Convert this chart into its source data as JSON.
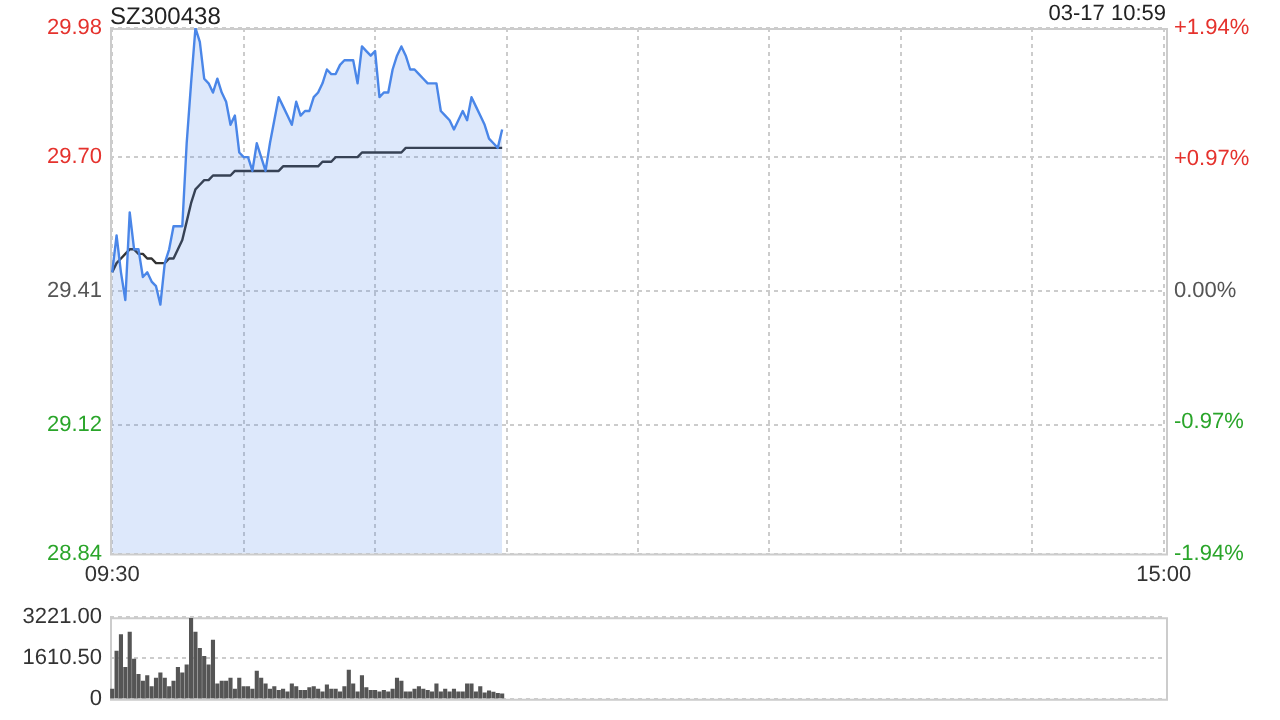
{
  "chart_data": [
    {
      "type": "area",
      "title": "SZ300438",
      "annotations": [
        "03-17 10:59"
      ],
      "categories": [
        "09:30",
        null,
        null,
        null,
        null,
        null,
        null,
        null,
        null,
        null,
        null,
        null,
        null,
        null,
        null,
        null,
        null,
        null,
        null,
        null,
        null,
        null,
        null,
        null,
        null,
        null,
        null,
        null,
        null,
        null,
        null,
        null,
        null,
        null,
        null,
        null,
        null,
        null,
        null,
        null,
        null,
        null,
        null,
        null,
        null,
        null,
        null,
        null,
        null,
        null,
        null,
        null,
        null,
        null,
        null,
        null,
        null,
        null,
        null,
        null,
        null,
        null,
        null,
        null,
        null,
        null,
        null,
        null,
        null,
        null,
        null,
        null,
        null,
        null,
        null,
        null,
        null,
        null,
        null,
        null,
        null,
        null,
        null,
        null,
        null,
        null,
        null,
        null,
        null,
        null,
        null,
        null,
        null,
        null,
        null,
        null,
        null,
        null,
        null,
        null,
        null,
        null,
        null,
        null,
        null,
        null,
        null,
        null,
        null,
        null,
        null,
        null,
        null,
        null,
        null,
        null,
        null,
        null,
        null,
        null,
        null,
        null,
        null,
        null,
        null,
        null,
        null,
        null,
        null,
        null,
        null,
        null,
        null,
        null,
        null,
        null,
        null,
        null,
        null,
        null,
        null,
        null,
        null,
        null,
        null,
        null,
        null,
        null,
        null,
        null,
        null,
        null,
        null,
        null,
        null,
        null,
        null,
        null,
        null,
        null,
        null,
        null,
        null,
        null,
        null,
        null,
        null,
        null,
        null,
        null,
        null,
        null,
        null,
        null,
        null,
        null,
        null,
        null,
        null,
        null,
        null,
        null,
        null,
        null,
        null,
        null,
        null,
        null,
        null,
        null,
        null,
        null,
        null,
        null,
        null,
        null,
        null,
        null,
        null,
        null,
        null,
        null,
        null,
        null,
        null,
        null,
        null,
        null,
        null,
        null,
        null,
        null,
        null,
        null,
        null,
        null,
        null,
        null,
        null,
        null,
        null,
        null,
        null,
        null,
        null,
        null,
        null,
        null,
        null,
        null,
        null,
        null,
        null,
        null,
        null,
        null,
        null,
        null,
        null,
        null,
        "15:00"
      ],
      "ylim": [
        28.84,
        29.98
      ],
      "yticks": [
        28.84,
        29.12,
        29.41,
        {
          "value": 29.7,
          "label": "29.70"
        },
        29.98
      ],
      "y2lim": [
        -1.94,
        1.94
      ],
      "y2ticks": [
        {
          "value": -1.94,
          "label": "-1.94%"
        },
        {
          "value": -0.97,
          "label": "-0.97%"
        },
        {
          "value": 0,
          "label": "0.00%"
        },
        {
          "value": 0.97,
          "label": "+0.97%"
        },
        {
          "value": 1.94,
          "label": "+1.94%"
        }
      ],
      "grid": true,
      "marker": "none",
      "series": [
        {
          "color": "#4a86e8",
          "values": [
            29.45,
            29.53,
            29.45,
            29.39,
            29.58,
            29.5,
            29.5,
            29.44,
            29.45,
            29.43,
            29.42,
            29.38,
            29.47,
            29.5,
            29.55,
            29.55,
            29.55,
            29.73,
            29.86,
            29.98,
            29.95,
            29.87,
            29.86,
            29.84,
            29.87,
            29.84,
            29.82,
            29.77,
            29.79,
            29.71,
            29.7,
            29.7,
            29.67,
            29.73,
            29.7,
            29.67,
            29.73,
            29.78,
            29.83,
            29.81,
            29.79,
            29.77,
            29.82,
            29.79,
            29.8,
            29.8,
            29.83,
            29.84,
            29.86,
            29.89,
            29.88,
            29.88,
            29.9,
            29.91,
            29.91,
            29.91,
            29.86,
            29.94,
            29.93,
            29.92,
            29.93,
            29.83,
            29.84,
            29.84,
            29.89,
            29.92,
            29.94,
            29.92,
            29.89,
            29.89,
            29.88,
            29.87,
            29.86,
            29.86,
            29.86,
            29.8,
            29.79,
            29.78,
            29.76,
            29.78,
            29.8,
            29.78,
            29.83,
            29.81,
            29.79,
            29.77,
            29.74,
            29.73,
            29.72,
            29.76,
            null,
            null,
            null,
            null,
            null,
            null,
            null,
            null,
            null,
            null,
            null,
            null,
            null,
            null,
            null,
            null,
            null,
            null,
            null,
            null,
            null,
            null,
            null,
            null,
            null,
            null,
            null,
            null,
            null,
            null,
            null,
            null,
            null,
            null,
            null,
            null,
            null,
            null,
            null,
            null,
            null,
            null,
            null,
            null,
            null,
            null,
            null,
            null,
            null,
            null,
            null,
            null,
            null,
            null,
            null,
            null,
            null,
            null,
            null,
            null,
            null,
            null,
            null,
            null,
            null,
            null,
            null,
            null,
            null,
            null,
            null,
            null,
            null,
            null,
            null,
            null,
            null,
            null,
            null,
            null,
            null,
            null,
            null,
            null,
            null,
            null,
            null,
            null,
            null,
            null,
            null,
            null,
            null,
            null,
            null,
            null,
            null,
            null,
            null,
            null,
            null,
            null,
            null,
            null,
            null,
            null,
            null,
            null,
            null,
            null,
            null,
            null,
            null,
            null,
            null,
            null,
            null,
            null,
            null,
            null,
            null,
            null,
            null,
            null,
            null,
            null,
            null,
            null,
            null,
            null,
            null,
            null,
            null,
            null,
            null,
            null,
            null,
            null,
            null,
            null,
            null,
            null,
            null,
            null,
            null,
            null,
            null,
            null,
            null,
            null,
            null
          ]
        },
        {
          "type": "line",
          "color": "#333333",
          "values": [
            29.45,
            29.47,
            29.48,
            29.49,
            29.5,
            29.5,
            29.49,
            29.49,
            29.48,
            29.48,
            29.47,
            29.47,
            29.47,
            29.48,
            29.48,
            29.5,
            29.52,
            29.56,
            29.6,
            29.63,
            29.64,
            29.65,
            29.65,
            29.66,
            29.66,
            29.66,
            29.66,
            29.66,
            29.67,
            29.67,
            29.67,
            29.67,
            29.67,
            29.67,
            29.67,
            29.67,
            29.67,
            29.67,
            29.67,
            29.68,
            29.68,
            29.68,
            29.68,
            29.68,
            29.68,
            29.68,
            29.68,
            29.68,
            29.69,
            29.69,
            29.69,
            29.7,
            29.7,
            29.7,
            29.7,
            29.7,
            29.7,
            29.71,
            29.71,
            29.71,
            29.71,
            29.71,
            29.71,
            29.71,
            29.71,
            29.71,
            29.71,
            29.72,
            29.72,
            29.72,
            29.72,
            29.72,
            29.72,
            29.72,
            29.72,
            29.72,
            29.72,
            29.72,
            29.72,
            29.72,
            29.72,
            29.72,
            29.72,
            29.72,
            29.72,
            29.72,
            29.72,
            29.72,
            29.72,
            29.72,
            null,
            null,
            null,
            null,
            null,
            null,
            null,
            null,
            null,
            null,
            null,
            null,
            null,
            null,
            null,
            null,
            null,
            null,
            null,
            null,
            null,
            null,
            null,
            null,
            null,
            null,
            null,
            null,
            null,
            null,
            null,
            null,
            null,
            null,
            null,
            null,
            null,
            null,
            null,
            null,
            null,
            null,
            null,
            null,
            null,
            null,
            null,
            null,
            null,
            null,
            null,
            null,
            null,
            null,
            null,
            null,
            null,
            null,
            null,
            null,
            null,
            null,
            null,
            null,
            null,
            null,
            null,
            null,
            null,
            null,
            null,
            null,
            null,
            null,
            null,
            null,
            null,
            null,
            null,
            null,
            null,
            null,
            null,
            null,
            null,
            null,
            null,
            null,
            null,
            null,
            null,
            null,
            null,
            null,
            null,
            null,
            null,
            null,
            null,
            null,
            null,
            null,
            null,
            null,
            null,
            null,
            null,
            null,
            null,
            null,
            null,
            null,
            null,
            null,
            null,
            null,
            null,
            null,
            null,
            null,
            null,
            null,
            null,
            null,
            null,
            null,
            null,
            null,
            null,
            null,
            null,
            null,
            null,
            null,
            null,
            null,
            null,
            null,
            null,
            null,
            null,
            null,
            null,
            null,
            null,
            null,
            null,
            null,
            null,
            null,
            null
          ]
        }
      ]
    },
    {
      "type": "bar",
      "color": "#555555",
      "ylim": [
        0,
        3221
      ],
      "yticks": [
        0,
        {
          "value": 1610.5,
          "label": "1610.50"
        },
        {
          "value": 3221,
          "label": "3221.00"
        }
      ],
      "grid": "y",
      "tick_labels": "y",
      "categories": [
        null,
        null,
        null,
        null,
        null,
        null,
        null,
        null,
        null,
        null,
        null,
        null,
        null,
        null,
        null,
        null,
        null,
        null,
        null,
        null,
        null,
        null,
        null,
        null,
        null,
        null,
        null,
        null,
        null,
        null,
        null,
        null,
        null,
        null,
        null,
        null,
        null,
        null,
        null,
        null,
        null,
        null,
        null,
        null,
        null,
        null,
        null,
        null,
        null,
        null,
        null,
        null,
        null,
        null,
        null,
        null,
        null,
        null,
        null,
        null,
        null,
        null,
        null,
        null,
        null,
        null,
        null,
        null,
        null,
        null,
        null,
        null,
        null,
        null,
        null,
        null,
        null,
        null,
        null,
        null,
        null,
        null,
        null,
        null,
        null,
        null,
        null,
        null,
        null,
        null,
        null,
        null,
        null,
        null,
        null,
        null,
        null,
        null,
        null,
        null,
        null,
        null,
        null,
        null,
        null,
        null,
        null,
        null,
        null,
        null,
        null,
        null,
        null,
        null,
        null,
        null,
        null,
        null,
        null,
        null,
        null,
        null,
        null,
        null,
        null,
        null,
        null,
        null,
        null,
        null,
        null,
        null,
        null,
        null,
        null,
        null,
        null,
        null,
        null,
        null,
        null,
        null,
        null,
        null,
        null,
        null,
        null,
        null,
        null,
        null,
        null,
        null,
        null,
        null,
        null,
        null,
        null,
        null,
        null,
        null,
        null,
        null,
        null,
        null,
        null,
        null,
        null,
        null,
        null,
        null,
        null,
        null,
        null,
        null,
        null,
        null,
        null,
        null,
        null,
        null,
        null,
        null,
        null,
        null,
        null,
        null,
        null,
        null,
        null,
        null,
        null,
        null,
        null,
        null,
        null,
        null,
        null,
        null,
        null,
        null,
        null,
        null,
        null,
        null,
        null,
        null,
        null,
        null,
        null,
        null,
        null,
        null,
        null,
        null,
        null,
        null,
        null,
        null,
        null,
        null,
        null,
        null,
        null,
        null,
        null,
        null,
        null,
        null,
        null,
        null,
        null,
        null,
        null,
        null,
        null,
        null,
        null,
        null,
        null,
        null,
        null
      ],
      "values": [
        370,
        1870,
        2520,
        1230,
        2620,
        1550,
        950,
        690,
        900,
        470,
        800,
        1010,
        800,
        470,
        690,
        1230,
        1010,
        1330,
        3160,
        2620,
        1980,
        1660,
        1330,
        2300,
        580,
        690,
        690,
        800,
        370,
        800,
        470,
        470,
        370,
        1080,
        800,
        580,
        370,
        470,
        320,
        370,
        260,
        580,
        470,
        320,
        320,
        430,
        470,
        370,
        260,
        540,
        370,
        370,
        260,
        470,
        1120,
        580,
        260,
        900,
        430,
        320,
        320,
        260,
        320,
        260,
        370,
        800,
        690,
        260,
        260,
        370,
        470,
        370,
        320,
        260,
        580,
        260,
        370,
        260,
        370,
        260,
        260,
        580,
        580,
        260,
        470,
        220,
        300,
        250,
        200,
        180,
        null,
        null,
        null,
        null,
        null,
        null,
        null,
        null,
        null,
        null,
        null,
        null,
        null,
        null,
        null,
        null,
        null,
        null,
        null,
        null,
        null,
        null,
        null,
        null,
        null,
        null,
        null,
        null,
        null,
        null,
        null,
        null,
        null,
        null,
        null,
        null,
        null,
        null,
        null,
        null,
        null,
        null,
        null,
        null,
        null,
        null,
        null,
        null,
        null,
        null,
        null,
        null,
        null,
        null,
        null,
        null,
        null,
        null,
        null,
        null,
        null,
        null,
        null,
        null,
        null,
        null,
        null,
        null,
        null,
        null,
        null,
        null,
        null,
        null,
        null,
        null,
        null,
        null,
        null,
        null,
        null,
        null,
        null,
        null,
        null,
        null,
        null,
        null,
        null,
        null,
        null,
        null,
        null,
        null,
        null,
        null,
        null,
        null,
        null,
        null,
        null,
        null,
        null,
        null,
        null,
        null,
        null,
        null,
        null,
        null,
        null,
        null,
        null,
        null,
        null,
        null,
        null,
        null,
        null,
        null,
        null,
        null,
        null,
        null,
        null,
        null,
        null,
        null,
        null,
        null,
        null,
        null,
        null,
        null,
        null,
        null,
        null,
        null,
        null,
        null,
        null,
        null,
        null,
        null,
        null,
        null,
        null,
        null,
        null,
        null,
        null
      ]
    }
  ]
}
